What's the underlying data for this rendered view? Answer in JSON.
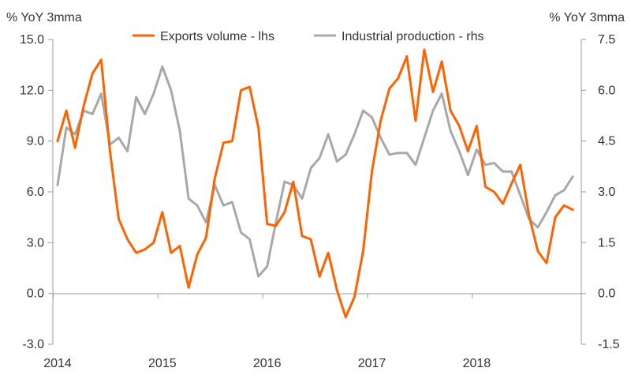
{
  "chart_data": {
    "type": "line",
    "left_axis_label": "% YoY 3mma",
    "right_axis_label": "% YoY 3mma",
    "left_ylim": [
      -3.0,
      15.0
    ],
    "right_ylim": [
      -1.5,
      7.5
    ],
    "left_ticks": [
      "15.0",
      "12.0",
      "9.0",
      "6.0",
      "3.0",
      "0.0",
      "-3.0"
    ],
    "right_ticks": [
      "7.5",
      "6.0",
      "4.5",
      "3.0",
      "1.5",
      "0.0",
      "-1.5"
    ],
    "x_tick_labels": [
      "2014",
      "2015",
      "2016",
      "2017",
      "2018"
    ],
    "x_start": "2014-01",
    "legend_position": "top-center",
    "grid": false,
    "series": [
      {
        "name": "Exports volume - lhs",
        "axis": "left",
        "color": "#ff6200",
        "values": [
          9.0,
          10.8,
          8.6,
          11.1,
          13.0,
          13.8,
          8.4,
          4.4,
          3.2,
          2.4,
          2.6,
          3.0,
          4.8,
          2.4,
          2.8,
          0.35,
          2.3,
          3.3,
          6.8,
          8.9,
          9.0,
          12.0,
          12.2,
          9.8,
          4.1,
          4.0,
          4.8,
          6.6,
          3.4,
          3.2,
          1.0,
          2.4,
          0.2,
          -1.4,
          -0.2,
          2.5,
          7.2,
          10.2,
          12.1,
          12.7,
          14.0,
          10.2,
          14.4,
          11.9,
          13.7,
          10.8,
          9.9,
          8.4,
          9.9,
          6.3,
          6.0,
          5.3,
          6.5,
          7.6,
          4.6,
          2.5,
          1.8,
          4.5,
          5.2,
          4.95
        ]
      },
      {
        "name": "Industrial production - rhs",
        "axis": "right",
        "color": "#a8a8a8",
        "values": [
          3.2,
          4.9,
          4.7,
          5.4,
          5.3,
          5.9,
          4.4,
          4.6,
          4.2,
          5.8,
          5.3,
          5.9,
          6.7,
          6.0,
          4.8,
          2.8,
          2.6,
          2.1,
          3.2,
          2.6,
          2.7,
          1.8,
          1.6,
          0.5,
          0.8,
          2.1,
          3.3,
          3.2,
          2.8,
          3.7,
          4.0,
          4.7,
          3.9,
          4.1,
          4.7,
          5.4,
          5.2,
          4.6,
          4.1,
          4.15,
          4.15,
          3.8,
          4.6,
          5.4,
          5.9,
          4.8,
          4.2,
          3.5,
          4.25,
          3.8,
          3.85,
          3.6,
          3.6,
          2.9,
          2.2,
          1.95,
          2.4,
          2.9,
          3.05,
          3.45
        ]
      }
    ]
  }
}
